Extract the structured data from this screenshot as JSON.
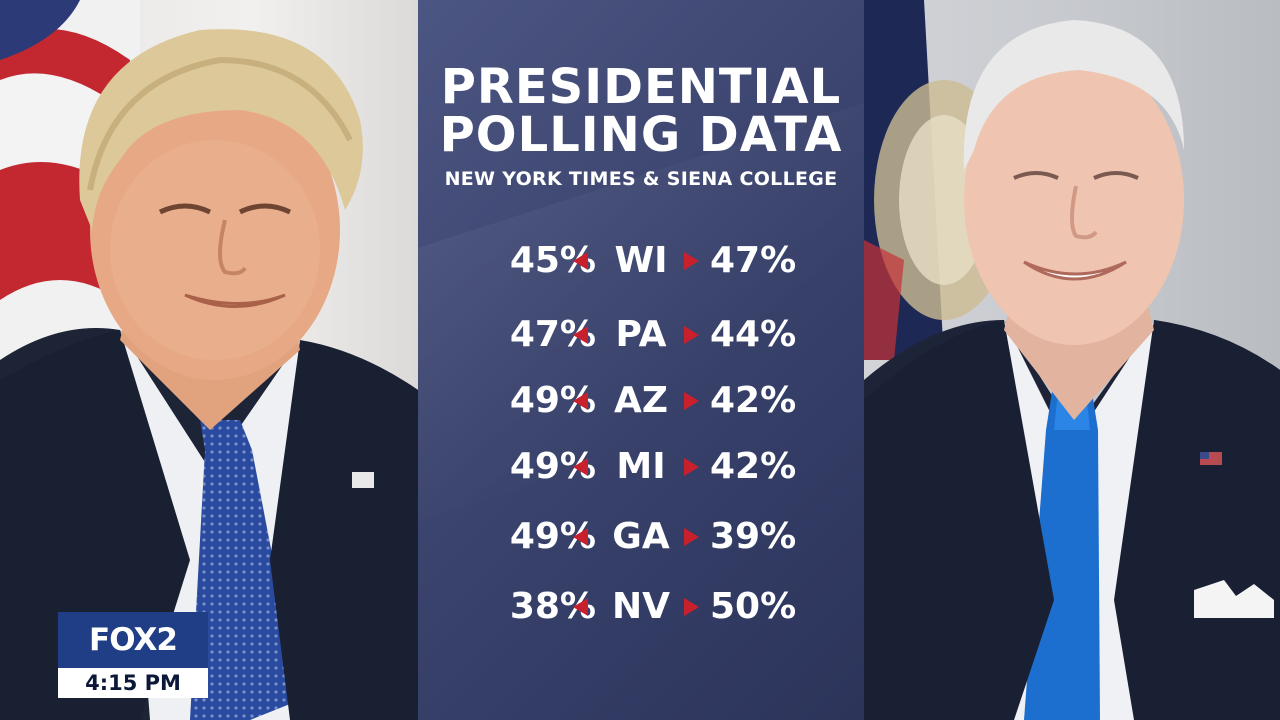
{
  "panel": {
    "title_line1": "PRESIDENTIAL",
    "title_line2": "POLLING DATA",
    "subtitle": "NEW YORK TIMES & SIENA COLLEGE",
    "accent_color": "#c8202c",
    "rows": [
      {
        "state": "WI",
        "left": "45%",
        "right": "47%"
      },
      {
        "state": "PA",
        "left": "47%",
        "right": "44%"
      },
      {
        "state": "AZ",
        "left": "49%",
        "right": "42%"
      },
      {
        "state": "MI",
        "left": "49%",
        "right": "42%"
      },
      {
        "state": "GA",
        "left": "49%",
        "right": "39%"
      },
      {
        "state": "NV",
        "left": "38%",
        "right": "50%"
      }
    ]
  },
  "bug": {
    "logo": "FOX2",
    "time": "4:15 PM",
    "color": "#1f3e85"
  },
  "icons": {
    "left_arrow": "triangle-left-icon",
    "right_arrow": "triangle-right-icon"
  }
}
